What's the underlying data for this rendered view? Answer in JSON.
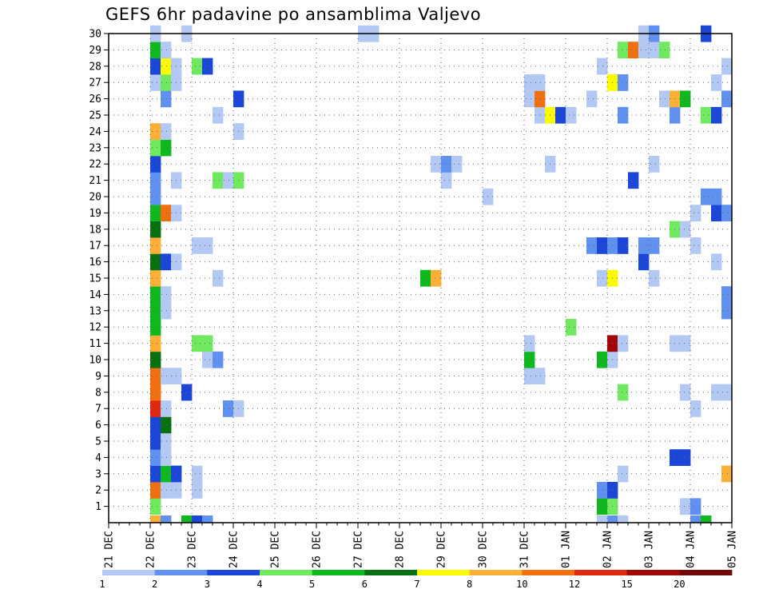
{
  "chart_data": {
    "type": "heatmap",
    "title": "GEFS 6hr padavine po ansamblima Valjevo",
    "x_tick_labels": [
      "21 DEC",
      "22 DEC",
      "23 DEC",
      "24 DEC",
      "25 DEC",
      "26 DEC",
      "27 DEC",
      "28 DEC",
      "29 DEC",
      "30 DEC",
      "31 DEC",
      "01 JAN",
      "02 JAN",
      "03 JAN",
      "04 JAN",
      "05 JAN"
    ],
    "y_tick_labels": [
      "1",
      "2",
      "3",
      "4",
      "5",
      "6",
      "7",
      "8",
      "9",
      "10",
      "11",
      "12",
      "13",
      "14",
      "15",
      "16",
      "17",
      "18",
      "19",
      "20",
      "21",
      "22",
      "23",
      "24",
      "25",
      "26",
      "27",
      "28",
      "29",
      "30"
    ],
    "xlim": [
      "21 DEC 00",
      "05 JAN 00"
    ],
    "ylim": [
      0,
      30
    ],
    "x_step": "6hr",
    "grid": true,
    "legend": {
      "placement": "bottom",
      "labels": [
        "1",
        "2",
        "3",
        "4",
        "5",
        "6",
        "7",
        "8",
        "10",
        "12",
        "15",
        "20"
      ],
      "colors": [
        "#b4c8f4",
        "#6090f0",
        "#1c46d8",
        "#70e860",
        "#10b820",
        "#087010",
        "#fcfc00",
        "#fcb038",
        "#f07010",
        "#e02810",
        "#a00808",
        "#700808"
      ]
    },
    "cells": [
      [
        "22 DEC 00",
        0,
        "#fcb038"
      ],
      [
        "22 DEC 06",
        0,
        "#6090f0"
      ],
      [
        "22 DEC 18",
        0,
        "#10b820"
      ],
      [
        "23 DEC 00",
        0,
        "#1c46d8"
      ],
      [
        "23 DEC 06",
        0,
        "#6090f0"
      ],
      [
        "02 JAN 00",
        0,
        "#6090f0"
      ],
      [
        "02 JAN 06",
        0,
        "#b4c8f4"
      ],
      [
        "04 JAN 00",
        0,
        "#6090f0"
      ],
      [
        "04 JAN 06",
        0,
        "#10b820"
      ],
      [
        "01 JAN 18",
        0,
        "#b4c8f4"
      ],
      [
        "22 DEC 00",
        1,
        "#70e860"
      ],
      [
        "01 JAN 18",
        1,
        "#10b820"
      ],
      [
        "02 JAN 00",
        1,
        "#70e860"
      ],
      [
        "03 JAN 18",
        1,
        "#b4c8f4"
      ],
      [
        "04 JAN 00",
        1,
        "#6090f0"
      ],
      [
        "22 DEC 00",
        2,
        "#f07010"
      ],
      [
        "22 DEC 06",
        2,
        "#b4c8f4"
      ],
      [
        "22 DEC 12",
        2,
        "#b4c8f4"
      ],
      [
        "23 DEC 00",
        2,
        "#b4c8f4"
      ],
      [
        "01 JAN 18",
        2,
        "#6090f0"
      ],
      [
        "02 JAN 00",
        2,
        "#1c46d8"
      ],
      [
        "22 DEC 00",
        3,
        "#1c46d8"
      ],
      [
        "22 DEC 06",
        3,
        "#10b820"
      ],
      [
        "22 DEC 12",
        3,
        "#1c46d8"
      ],
      [
        "23 DEC 00",
        3,
        "#b4c8f4"
      ],
      [
        "02 JAN 06",
        3,
        "#b4c8f4"
      ],
      [
        "04 JAN 18",
        3,
        "#fcb038"
      ],
      [
        "22 DEC 00",
        4,
        "#6090f0"
      ],
      [
        "22 DEC 06",
        4,
        "#b4c8f4"
      ],
      [
        "03 JAN 12",
        4,
        "#1c46d8"
      ],
      [
        "03 JAN 18",
        4,
        "#1c46d8"
      ],
      [
        "22 DEC 00",
        5,
        "#1c46d8"
      ],
      [
        "22 DEC 06",
        5,
        "#b4c8f4"
      ],
      [
        "22 DEC 00",
        6,
        "#1c46d8"
      ],
      [
        "22 DEC 06",
        6,
        "#087010"
      ],
      [
        "22 DEC 00",
        7,
        "#e02810"
      ],
      [
        "22 DEC 06",
        7,
        "#b4c8f4"
      ],
      [
        "23 DEC 18",
        7,
        "#6090f0"
      ],
      [
        "24 DEC 00",
        7,
        "#b4c8f4"
      ],
      [
        "04 JAN 00",
        7,
        "#b4c8f4"
      ],
      [
        "22 DEC 00",
        8,
        "#f07010"
      ],
      [
        "22 DEC 18",
        8,
        "#1c46d8"
      ],
      [
        "02 JAN 06",
        8,
        "#70e860"
      ],
      [
        "03 JAN 18",
        8,
        "#b4c8f4"
      ],
      [
        "04 JAN 12",
        8,
        "#b4c8f4"
      ],
      [
        "04 JAN 18",
        8,
        "#b4c8f4"
      ],
      [
        "22 DEC 00",
        9,
        "#f07010"
      ],
      [
        "22 DEC 06",
        9,
        "#b4c8f4"
      ],
      [
        "22 DEC 12",
        9,
        "#b4c8f4"
      ],
      [
        "31 DEC 00",
        9,
        "#b4c8f4"
      ],
      [
        "31 DEC 06",
        9,
        "#b4c8f4"
      ],
      [
        "22 DEC 00",
        10,
        "#087010"
      ],
      [
        "23 DEC 06",
        10,
        "#b4c8f4"
      ],
      [
        "23 DEC 12",
        10,
        "#6090f0"
      ],
      [
        "31 DEC 00",
        10,
        "#10b820"
      ],
      [
        "01 JAN 18",
        10,
        "#10b820"
      ],
      [
        "02 JAN 00",
        10,
        "#b4c8f4"
      ],
      [
        "22 DEC 00",
        11,
        "#fcb038"
      ],
      [
        "23 DEC 00",
        11,
        "#70e860"
      ],
      [
        "23 DEC 06",
        11,
        "#70e860"
      ],
      [
        "31 DEC 00",
        11,
        "#b4c8f4"
      ],
      [
        "02 JAN 00",
        11,
        "#a00808"
      ],
      [
        "02 JAN 06",
        11,
        "#b4c8f4"
      ],
      [
        "03 JAN 12",
        11,
        "#b4c8f4"
      ],
      [
        "03 JAN 18",
        11,
        "#b4c8f4"
      ],
      [
        "22 DEC 00",
        12,
        "#10b820"
      ],
      [
        "01 JAN 00",
        12,
        "#70e860"
      ],
      [
        "22 DEC 00",
        13,
        "#10b820"
      ],
      [
        "22 DEC 06",
        13,
        "#b4c8f4"
      ],
      [
        "04 JAN 18",
        13,
        "#6090f0"
      ],
      [
        "05 JAN 00",
        13,
        "#1c46d8"
      ],
      [
        "22 DEC 00",
        14,
        "#10b820"
      ],
      [
        "22 DEC 06",
        14,
        "#b4c8f4"
      ],
      [
        "04 JAN 18",
        14,
        "#6090f0"
      ],
      [
        "22 DEC 00",
        15,
        "#fcb038"
      ],
      [
        "23 DEC 12",
        15,
        "#b4c8f4"
      ],
      [
        "28 DEC 12",
        15,
        "#10b820"
      ],
      [
        "28 DEC 18",
        15,
        "#fcb038"
      ],
      [
        "01 JAN 18",
        15,
        "#b4c8f4"
      ],
      [
        "02 JAN 00",
        15,
        "#fcfc00"
      ],
      [
        "03 JAN 00",
        15,
        "#b4c8f4"
      ],
      [
        "22 DEC 00",
        16,
        "#087010"
      ],
      [
        "22 DEC 06",
        16,
        "#1c46d8"
      ],
      [
        "22 DEC 12",
        16,
        "#b4c8f4"
      ],
      [
        "02 JAN 18",
        16,
        "#1c46d8"
      ],
      [
        "04 JAN 12",
        16,
        "#b4c8f4"
      ],
      [
        "22 DEC 00",
        17,
        "#fcb038"
      ],
      [
        "23 DEC 00",
        17,
        "#b4c8f4"
      ],
      [
        "23 DEC 06",
        17,
        "#b4c8f4"
      ],
      [
        "01 JAN 12",
        17,
        "#6090f0"
      ],
      [
        "01 JAN 18",
        17,
        "#1c46d8"
      ],
      [
        "02 JAN 00",
        17,
        "#6090f0"
      ],
      [
        "02 JAN 06",
        17,
        "#1c46d8"
      ],
      [
        "02 JAN 18",
        17,
        "#6090f0"
      ],
      [
        "03 JAN 00",
        17,
        "#6090f0"
      ],
      [
        "04 JAN 00",
        17,
        "#b4c8f4"
      ],
      [
        "22 DEC 00",
        18,
        "#087010"
      ],
      [
        "03 JAN 12",
        18,
        "#70e860"
      ],
      [
        "03 JAN 18",
        18,
        "#b4c8f4"
      ],
      [
        "22 DEC 00",
        19,
        "#10b820"
      ],
      [
        "22 DEC 06",
        19,
        "#f07010"
      ],
      [
        "22 DEC 12",
        19,
        "#b4c8f4"
      ],
      [
        "04 JAN 00",
        19,
        "#b4c8f4"
      ],
      [
        "04 JAN 12",
        19,
        "#1c46d8"
      ],
      [
        "04 JAN 18",
        19,
        "#6090f0"
      ],
      [
        "22 DEC 00",
        20,
        "#6090f0"
      ],
      [
        "30 DEC 00",
        20,
        "#b4c8f4"
      ],
      [
        "04 JAN 06",
        20,
        "#6090f0"
      ],
      [
        "04 JAN 12",
        20,
        "#6090f0"
      ],
      [
        "22 DEC 00",
        21,
        "#6090f0"
      ],
      [
        "22 DEC 12",
        21,
        "#b4c8f4"
      ],
      [
        "23 DEC 12",
        21,
        "#70e860"
      ],
      [
        "23 DEC 18",
        21,
        "#b4c8f4"
      ],
      [
        "24 DEC 00",
        21,
        "#70e860"
      ],
      [
        "29 DEC 00",
        21,
        "#b4c8f4"
      ],
      [
        "02 JAN 12",
        21,
        "#1c46d8"
      ],
      [
        "22 DEC 00",
        22,
        "#1c46d8"
      ],
      [
        "28 DEC 18",
        22,
        "#b4c8f4"
      ],
      [
        "29 DEC 00",
        22,
        "#6090f0"
      ],
      [
        "29 DEC 06",
        22,
        "#b4c8f4"
      ],
      [
        "31 DEC 12",
        22,
        "#b4c8f4"
      ],
      [
        "03 JAN 00",
        22,
        "#b4c8f4"
      ],
      [
        "22 DEC 00",
        23,
        "#70e860"
      ],
      [
        "22 DEC 06",
        23,
        "#10b820"
      ],
      [
        "22 DEC 00",
        24,
        "#fcb038"
      ],
      [
        "22 DEC 06",
        24,
        "#b4c8f4"
      ],
      [
        "24 DEC 00",
        24,
        "#b4c8f4"
      ],
      [
        "23 DEC 12",
        25,
        "#b4c8f4"
      ],
      [
        "31 DEC 06",
        25,
        "#b4c8f4"
      ],
      [
        "31 DEC 12",
        25,
        "#fcfc00"
      ],
      [
        "31 DEC 18",
        25,
        "#1c46d8"
      ],
      [
        "01 JAN 00",
        25,
        "#b4c8f4"
      ],
      [
        "02 JAN 06",
        25,
        "#6090f0"
      ],
      [
        "03 JAN 12",
        25,
        "#6090f0"
      ],
      [
        "04 JAN 06",
        25,
        "#70e860"
      ],
      [
        "04 JAN 12",
        25,
        "#1c46d8"
      ],
      [
        "22 DEC 06",
        26,
        "#6090f0"
      ],
      [
        "24 DEC 00",
        26,
        "#1c46d8"
      ],
      [
        "31 DEC 00",
        26,
        "#b4c8f4"
      ],
      [
        "31 DEC 06",
        26,
        "#f07010"
      ],
      [
        "01 JAN 12",
        26,
        "#b4c8f4"
      ],
      [
        "03 JAN 06",
        26,
        "#b4c8f4"
      ],
      [
        "03 JAN 12",
        26,
        "#fcb038"
      ],
      [
        "03 JAN 18",
        26,
        "#10b820"
      ],
      [
        "04 JAN 18",
        26,
        "#6090f0"
      ],
      [
        "05 JAN 00",
        26,
        "#70e860"
      ],
      [
        "22 DEC 00",
        27,
        "#b4c8f4"
      ],
      [
        "22 DEC 06",
        27,
        "#70e860"
      ],
      [
        "22 DEC 12",
        27,
        "#b4c8f4"
      ],
      [
        "31 DEC 00",
        27,
        "#b4c8f4"
      ],
      [
        "31 DEC 06",
        27,
        "#b4c8f4"
      ],
      [
        "02 JAN 00",
        27,
        "#fcfc00"
      ],
      [
        "02 JAN 06",
        27,
        "#6090f0"
      ],
      [
        "04 JAN 12",
        27,
        "#b4c8f4"
      ],
      [
        "05 JAN 00",
        27,
        "#b4c8f4"
      ],
      [
        "22 DEC 00",
        28,
        "#1c46d8"
      ],
      [
        "22 DEC 06",
        28,
        "#fcfc00"
      ],
      [
        "22 DEC 12",
        28,
        "#b4c8f4"
      ],
      [
        "23 DEC 00",
        28,
        "#70e860"
      ],
      [
        "23 DEC 06",
        28,
        "#1c46d8"
      ],
      [
        "01 JAN 18",
        28,
        "#b4c8f4"
      ],
      [
        "04 JAN 18",
        28,
        "#b4c8f4"
      ],
      [
        "05 JAN 00",
        28,
        "#6090f0"
      ],
      [
        "22 DEC 00",
        29,
        "#10b820"
      ],
      [
        "22 DEC 06",
        29,
        "#b4c8f4"
      ],
      [
        "02 JAN 06",
        29,
        "#70e860"
      ],
      [
        "02 JAN 12",
        29,
        "#f07010"
      ],
      [
        "02 JAN 18",
        29,
        "#b4c8f4"
      ],
      [
        "03 JAN 00",
        29,
        "#b4c8f4"
      ],
      [
        "03 JAN 06",
        29,
        "#70e860"
      ],
      [
        "22 DEC 00",
        30,
        "#b4c8f4"
      ],
      [
        "22 DEC 18",
        30,
        "#b4c8f4"
      ],
      [
        "27 DEC 00",
        30,
        "#b4c8f4"
      ],
      [
        "27 DEC 06",
        30,
        "#b4c8f4"
      ],
      [
        "02 JAN 18",
        30,
        "#b4c8f4"
      ],
      [
        "03 JAN 00",
        30,
        "#6090f0"
      ],
      [
        "04 JAN 06",
        30,
        "#1c46d8"
      ]
    ]
  }
}
